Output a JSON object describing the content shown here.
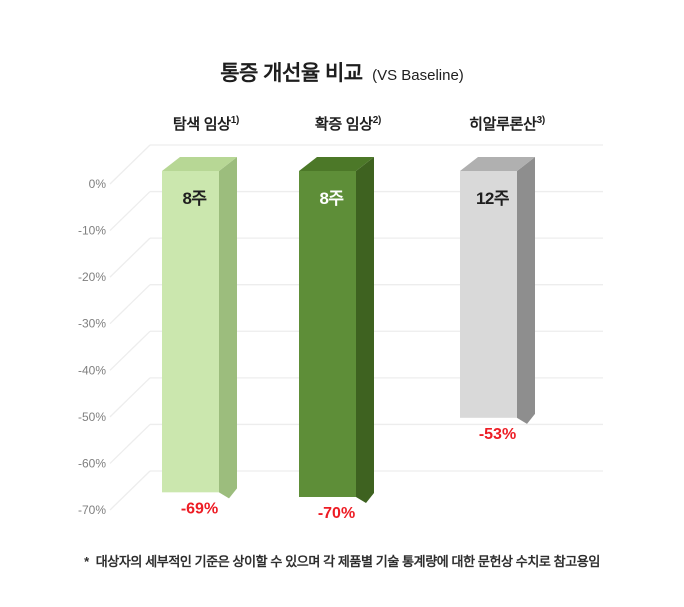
{
  "title": {
    "main": "통증 개선율 비교",
    "suffix": "(VS Baseline)"
  },
  "footnote": {
    "marker": "*",
    "text": "대상자의 세부적인 기준은 상이할 수 있으며 각 제품별 기술 통계량에 대한 문헌상 수치로 참고용임"
  },
  "colors": {
    "accent_red": "#ED1C24",
    "tick_gray": "#7F7F7F",
    "grid": "#EDEDED",
    "text_dark": "#1E1E1E"
  },
  "chart_data": {
    "type": "bar",
    "title": "통증 개선율 비교 (VS Baseline)",
    "categories": [
      "탐색 임상",
      "확증 임상",
      "히알루론산"
    ],
    "category_superscripts": [
      "1)",
      "2)",
      "3)"
    ],
    "values": [
      -69,
      -70,
      -53
    ],
    "bar_duration_labels": [
      "8주",
      "8주",
      "12주"
    ],
    "value_labels": [
      "-69%",
      "-70%",
      "-53%"
    ],
    "y_ticks": [
      "0%",
      "-10%",
      "-20%",
      "-30%",
      "-40%",
      "-50%",
      "-60%",
      "-70%"
    ],
    "ylim": [
      -70,
      0
    ],
    "grid": true,
    "legend": false,
    "style": "3d-column",
    "bar_colors": [
      {
        "front": "#CBE7AE",
        "top": "#B7D795",
        "side": "#9CBD7D",
        "label": "#1E1E1E"
      },
      {
        "front": "#5E8E38",
        "top": "#4C7828",
        "side": "#3E6220",
        "label": "#FFFFFF"
      },
      {
        "front": "#D9D9D9",
        "top": "#B0B0B0",
        "side": "#8E8E8E",
        "label": "#1E1E1E"
      }
    ]
  }
}
